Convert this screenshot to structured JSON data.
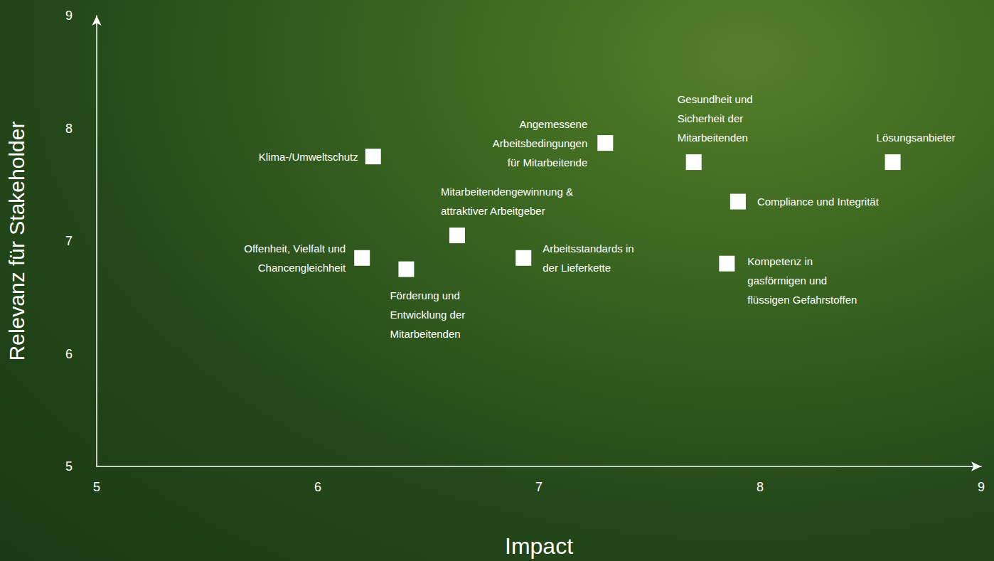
{
  "chart_data": {
    "type": "scatter",
    "xlabel": "Impact",
    "ylabel": "Relevanz für Stakeholder",
    "labels": [
      "Klima-/Umweltschutz",
      "Angemessene Arbeitsbedingungen für Mitarbeitende",
      "Gesundheit und Sicherheit der Mitarbeitenden",
      "Lösungsanbieter",
      "Compliance und Integrität",
      "Mitarbeitendengewinnung & attraktiver Arbeitgeber",
      "Offenheit, Vielfalt und Chancengleichheit",
      "Förderung und Entwicklung der Mitarbeitenden",
      "Arbeitsstandards in der Lieferkette",
      "Kompetenz in gasförmigen und flüssigen Gefahrstoffen"
    ],
    "x": [
      6.25,
      7.3,
      7.7,
      8.6,
      7.9,
      6.63,
      6.2,
      6.4,
      6.93,
      7.85
    ],
    "values": [
      7.75,
      7.87,
      7.7,
      7.7,
      7.35,
      7.05,
      6.85,
      6.75,
      6.85,
      6.8
    ],
    "xlim": [
      5,
      9
    ],
    "xticks": [
      5,
      6,
      7,
      8,
      9
    ],
    "ylim": [
      5,
      9
    ],
    "yticks": [
      5,
      6,
      7,
      8,
      9
    ],
    "color": "#ffffff",
    "marker": "square",
    "grid": false
  }
}
